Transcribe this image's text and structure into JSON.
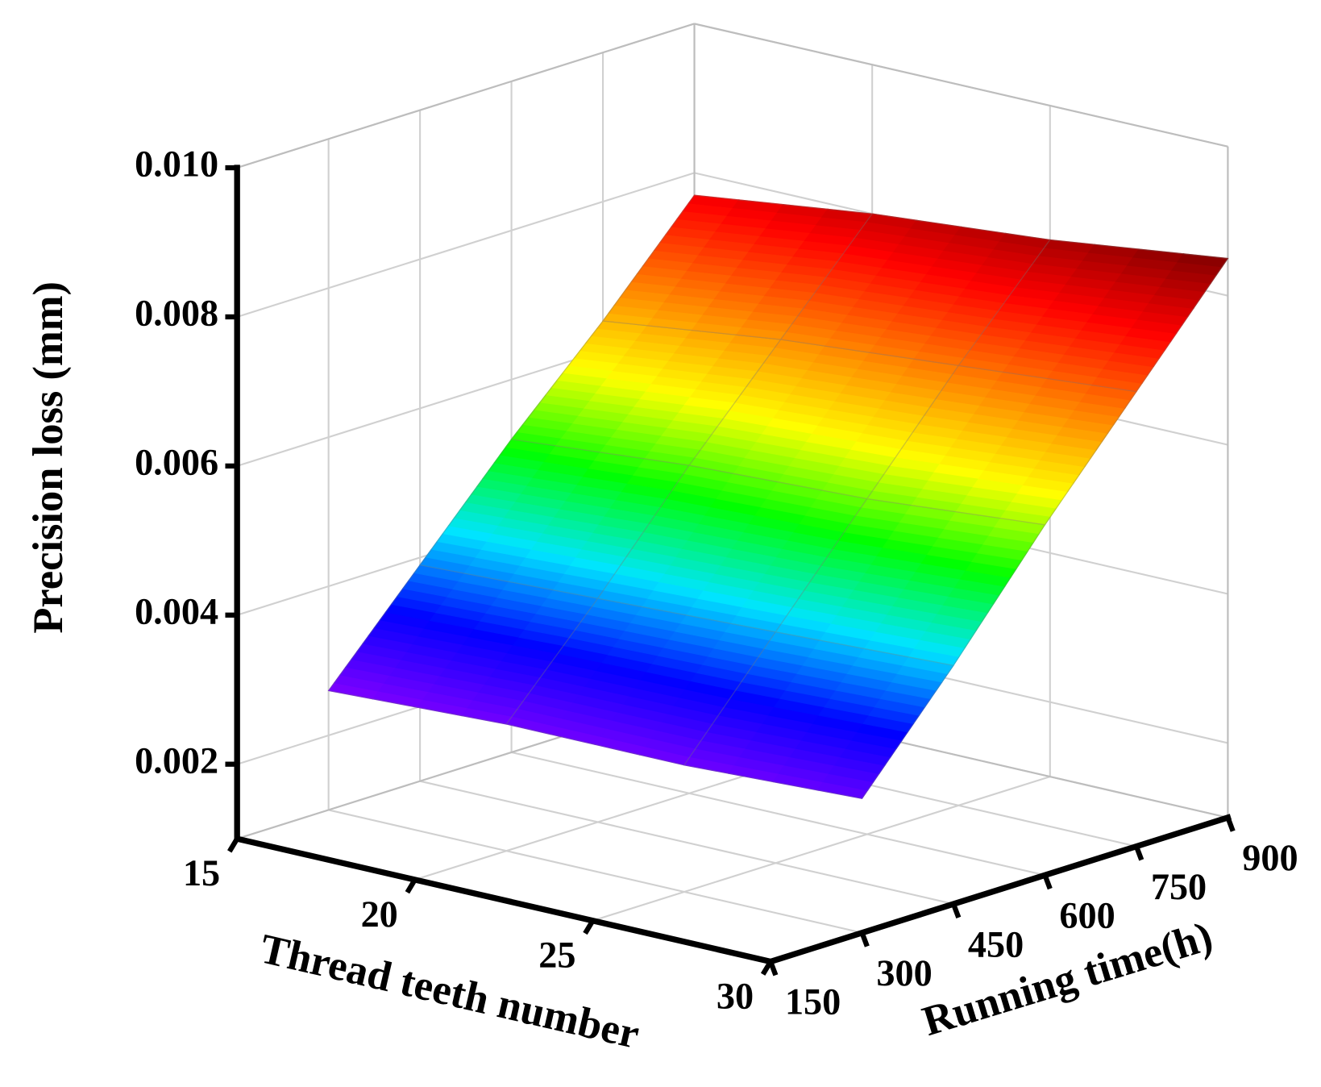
{
  "chart_data": {
    "type": "surface",
    "xlabel": "Thread teeth number",
    "ylabel": "Running time(h)",
    "zlabel": "Precision loss (mm)",
    "x": [
      15,
      20,
      25,
      30
    ],
    "y": [
      300,
      450,
      600,
      750,
      900
    ],
    "values": [
      [
        0.0026,
        0.0039,
        0.0052,
        0.0064,
        0.0077
      ],
      [
        0.0027,
        0.004,
        0.0054,
        0.0067,
        0.008
      ],
      [
        0.0027,
        0.0041,
        0.0055,
        0.0069,
        0.0082
      ],
      [
        0.0028,
        0.0042,
        0.0057,
        0.0071,
        0.0085
      ]
    ],
    "colormap": [
      "#7f00ff",
      "#0000ff",
      "#00e5ff",
      "#00ff00",
      "#ffff00",
      "#ff8000",
      "#ff0000",
      "#800000"
    ],
    "xlim": [
      15,
      30
    ],
    "xticks": [
      15,
      20,
      25,
      30
    ],
    "ylim": [
      150,
      900
    ],
    "yticks": [
      150,
      300,
      450,
      600,
      750,
      900
    ],
    "zlim": [
      0.001,
      0.01
    ],
    "zticks": [
      0.002,
      0.004,
      0.006,
      0.008,
      {
        "value": 0.01,
        "label": "0.010"
      }
    ],
    "grid": true
  }
}
